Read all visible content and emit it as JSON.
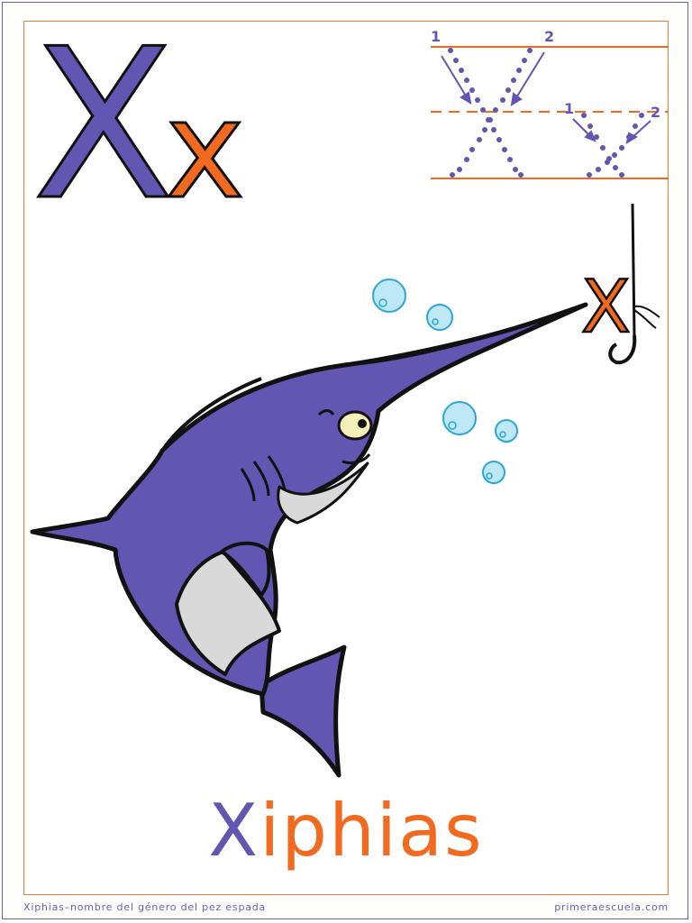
{
  "letter": {
    "upper": "X",
    "lower": "x",
    "upper_color": "#6356b3",
    "lower_color": "#f26a1f"
  },
  "tracing": {
    "upper_stroke_numbers": [
      "1",
      "2"
    ],
    "lower_stroke_numbers": [
      "1",
      "2"
    ],
    "dot_color": "#6356b3",
    "guideline_color": "#f26a1f"
  },
  "illustration": {
    "subject": "swordfish",
    "hook_letter": "X",
    "body_color": "#6356b3",
    "belly_color": "#d9d9d9",
    "bubble_color": "#2aa7d6"
  },
  "word": {
    "first_letter": "X",
    "rest": "iphias"
  },
  "footer": {
    "caption": "Xiphias–nombre del género del pez espada",
    "site": "primeraescuela.com"
  },
  "colors": {
    "frame_purple": "#6a5db8",
    "frame_orange": "#f07a3a"
  }
}
